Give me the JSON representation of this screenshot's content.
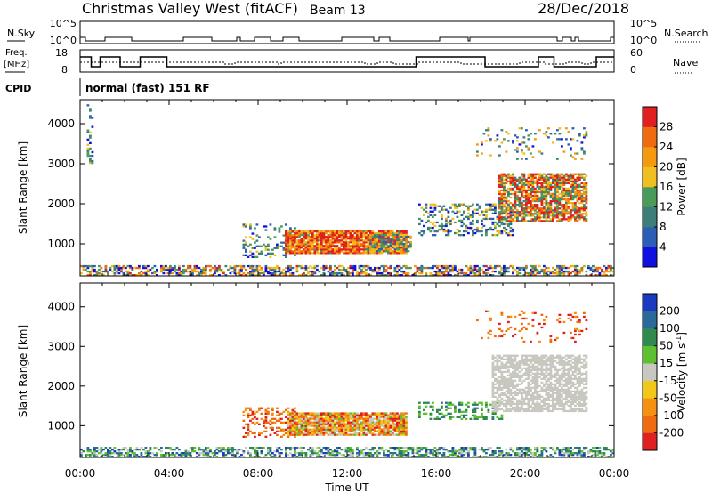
{
  "header": {
    "title": "Christmas Valley West (fitACF)",
    "beam": "Beam 13",
    "date": "28/Dec/2018"
  },
  "status_panels": {
    "nsky_label": "N.Sky",
    "nsky_ticks": [
      "10^5",
      "10^0"
    ],
    "nsearch_label": "N.Search",
    "nsearch_ticks": [
      "10^5",
      "10^0"
    ],
    "freq_label_1": "Freq.",
    "freq_label_2": "[MHz]",
    "freq_ticks": [
      "18",
      "8"
    ],
    "nave_label": "Nave",
    "nave_ticks": [
      "60",
      "0"
    ],
    "cpid_label": "CPID",
    "cpid_text": "normal (fast) 151 RF"
  },
  "colors": {
    "power_scale": [
      "#1010e0",
      "#2a5fb5",
      "#3d7e78",
      "#4a9a5a",
      "#f0c020",
      "#f59a10",
      "#f06a10",
      "#e02020"
    ],
    "velocity_scale": [
      "#1a3ac0",
      "#2a6a9a",
      "#2f8a50",
      "#5cc030",
      "#c8c8c0",
      "#f2c818",
      "#f59010",
      "#f06a10",
      "#e02020"
    ],
    "ground_scatter": "#c8c8c0"
  },
  "chart_data": [
    {
      "type": "heatmap",
      "name": "power",
      "ylabel": "Slant Range [km]",
      "xlabel": "Time UT",
      "ylim": [
        200,
        4600
      ],
      "xlim": [
        0,
        24
      ],
      "y_ticks": [
        1000,
        2000,
        3000,
        4000
      ],
      "x_ticks": [
        "00:00",
        "04:00",
        "08:00",
        "12:00",
        "16:00",
        "20:00",
        "00:00"
      ],
      "colorbar": {
        "label": "Power [dB]",
        "range": [
          0,
          32
        ],
        "ticks": [
          "4",
          "8",
          "12",
          "16",
          "20",
          "24",
          "28"
        ]
      },
      "regions": [
        {
          "t0": 0.0,
          "t1": 24.0,
          "r0": 200,
          "r1": 450,
          "level": 0.45,
          "density": 0.55,
          "spread": 0.5
        },
        {
          "t0": 7.3,
          "t1": 9.6,
          "r0": 650,
          "r1": 1500,
          "level": 0.3,
          "density": 0.25,
          "spread": 0.25
        },
        {
          "t0": 9.2,
          "t1": 14.6,
          "r0": 750,
          "r1": 1300,
          "level": 0.82,
          "density": 0.92,
          "spread": 0.35
        },
        {
          "t0": 12.8,
          "t1": 14.8,
          "r0": 800,
          "r1": 1250,
          "level": 0.45,
          "density": 0.55,
          "spread": 0.3
        },
        {
          "t0": 15.2,
          "t1": 19.5,
          "r0": 1200,
          "r1": 2000,
          "level": 0.35,
          "density": 0.35,
          "spread": 0.3
        },
        {
          "t0": 18.8,
          "t1": 22.8,
          "r0": 1550,
          "r1": 2750,
          "level": 0.7,
          "density": 0.75,
          "spread": 0.45
        },
        {
          "t0": 17.8,
          "t1": 22.8,
          "r0": 3100,
          "r1": 3900,
          "level": 0.4,
          "density": 0.12,
          "spread": 0.35
        },
        {
          "t0": 0.3,
          "t1": 0.6,
          "r0": 3000,
          "r1": 4500,
          "level": 0.3,
          "density": 0.25,
          "spread": 0.25
        }
      ]
    },
    {
      "type": "heatmap",
      "name": "velocity",
      "ylabel": "Slant Range [km]",
      "xlabel": "Time UT",
      "ylim": [
        200,
        4600
      ],
      "xlim": [
        0,
        24
      ],
      "y_ticks": [
        1000,
        2000,
        3000,
        4000
      ],
      "x_ticks": [
        "00:00",
        "04:00",
        "08:00",
        "12:00",
        "16:00",
        "20:00",
        "00:00"
      ],
      "colorbar": {
        "label": "Velocity [m s",
        "label_sup": "-1",
        "label_end": "]",
        "range": [
          -250,
          250
        ],
        "ticks": [
          "200",
          "100",
          "50",
          "15",
          "-15",
          "-50",
          "-100",
          "-200"
        ]
      },
      "regions": [
        {
          "t0": 0.0,
          "t1": 24.0,
          "r0": 200,
          "r1": 450,
          "level": 0.3,
          "density": 0.55,
          "spread": 0.25
        },
        {
          "t0": 7.3,
          "t1": 9.6,
          "r0": 700,
          "r1": 1450,
          "level": 0.82,
          "density": 0.3,
          "spread": 0.15
        },
        {
          "t0": 9.3,
          "t1": 14.6,
          "r0": 750,
          "r1": 1300,
          "level": 0.7,
          "density": 0.92,
          "spread": 0.3
        },
        {
          "t0": 15.2,
          "t1": 19.0,
          "r0": 1150,
          "r1": 1600,
          "level": 0.3,
          "density": 0.35,
          "spread": 0.1
        },
        {
          "t0": 18.5,
          "t1": 22.8,
          "r0": 1350,
          "r1": 2750,
          "level": 0.5,
          "density": 0.7,
          "spread": 0.0
        },
        {
          "t0": 17.8,
          "t1": 22.8,
          "r0": 3100,
          "r1": 3900,
          "level": 0.85,
          "density": 0.1,
          "spread": 0.15
        }
      ]
    }
  ]
}
